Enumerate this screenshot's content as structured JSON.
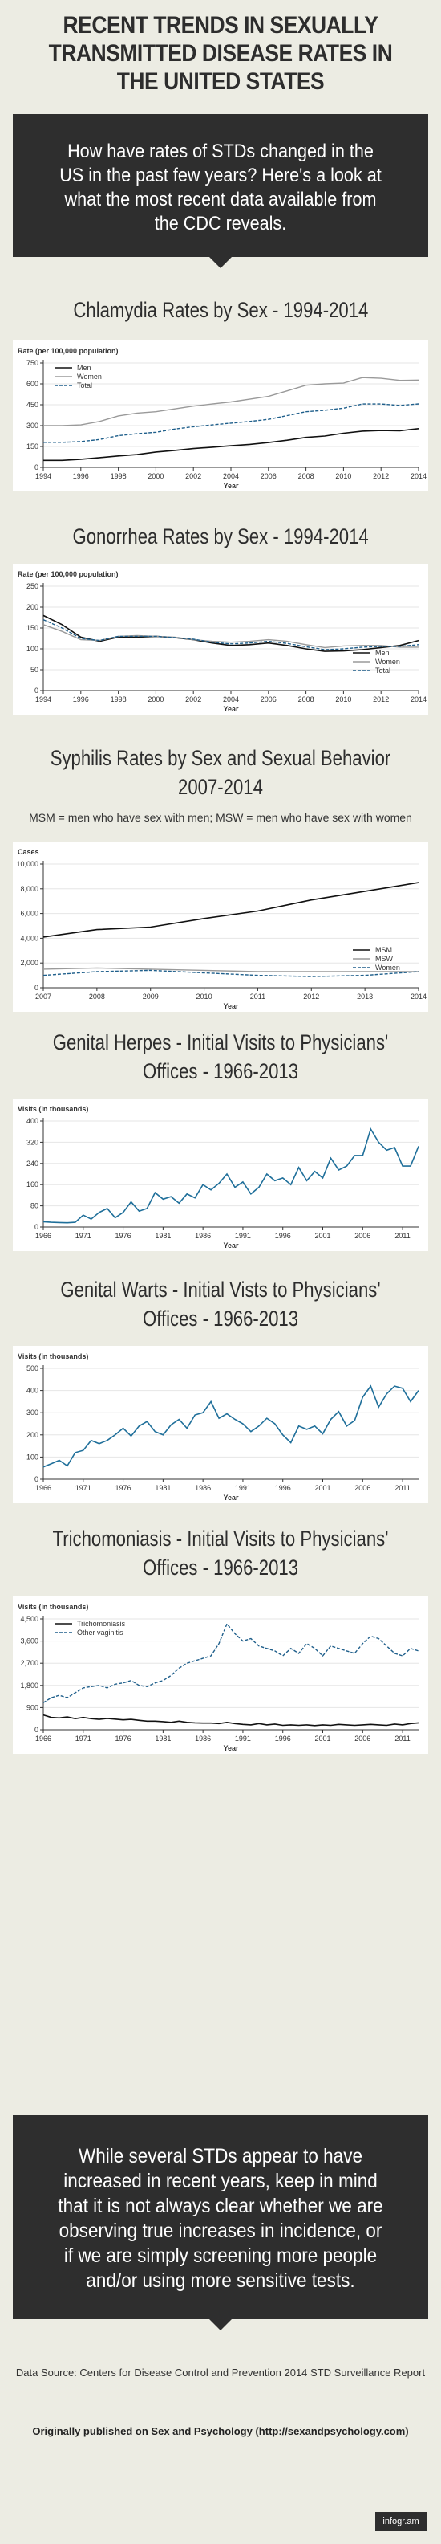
{
  "header": {
    "title": "RECENT TRENDS IN SEXUALLY TRANSMITTED DISEASE RATES IN THE UNITED STATES"
  },
  "intro": {
    "text": "How have rates of STDs changed in the US in the past few years? Here's a look at what the most recent data available from the CDC reveals."
  },
  "sections": [
    {
      "title": "Chlamydia Rates by Sex - 1994-2014",
      "note": ""
    },
    {
      "title": "Gonorrhea Rates by Sex - 1994-2014",
      "note": ""
    },
    {
      "title": "Syphilis Rates by Sex and Sexual Behavior 2007-2014",
      "note": "MSM = men who have sex with men; MSW = men who have sex with women"
    },
    {
      "title": "Genital Herpes - Initial Visits to Physicians' Offices - 1966-2013",
      "note": ""
    },
    {
      "title": "Genital Warts - Initial Vists to Physicians' Offices - 1966-2013",
      "note": ""
    },
    {
      "title": "Trichomoniasis - Initial Visits to Physicians' Offices - 1966-2013",
      "note": ""
    }
  ],
  "outro": {
    "text": "While several STDs appear to have increased in recent years, keep in mind that it is not always clear whether we are observing true increases in incidence, or if we are simply screening more people and/or using more sensitive tests."
  },
  "footer": {
    "source": "Data Source: Centers for Disease Control and Prevention 2014 STD Surveillance Report",
    "published": "Originally published on Sex and Psychology (http://sexandpsychology.com)",
    "badge": "infogr.am"
  },
  "colors": {
    "background": "#ecece3",
    "dark_box": "#2e2e2e",
    "series_black": "#111111",
    "series_gray": "#9a9a9a",
    "series_blue": "#1f5f8b",
    "series_teal": "#1f6f9a"
  },
  "chart_data": [
    {
      "type": "line",
      "title": "Chlamydia Rates by Sex - 1994-2014",
      "ylabel": "Rate (per 100,000 population)",
      "xlabel": "Year",
      "ylim": [
        0,
        750
      ],
      "yticks": [
        0,
        150,
        300,
        450,
        600,
        750
      ],
      "xlim": [
        1994,
        2014
      ],
      "xticks": [
        "1994",
        "1996",
        "1998",
        "2000",
        "2002",
        "2004",
        "2006",
        "2008",
        "2010",
        "2012",
        "2014"
      ],
      "legend": "top-left",
      "x": [
        1994,
        1995,
        1996,
        1997,
        1998,
        1999,
        2000,
        2001,
        2002,
        2003,
        2004,
        2005,
        2006,
        2007,
        2008,
        2009,
        2010,
        2011,
        2012,
        2013,
        2014
      ],
      "series": [
        {
          "name": "Men",
          "style": "solid-black",
          "values": [
            50,
            50,
            58,
            70,
            82,
            92,
            110,
            122,
            135,
            145,
            155,
            165,
            178,
            195,
            215,
            225,
            245,
            260,
            265,
            263,
            278
          ]
        },
        {
          "name": "Women",
          "style": "solid-gray",
          "values": [
            300,
            300,
            305,
            330,
            370,
            390,
            400,
            420,
            440,
            455,
            470,
            490,
            510,
            550,
            590,
            600,
            605,
            645,
            640,
            625,
            627
          ]
        },
        {
          "name": "Total",
          "style": "dashed-blue",
          "values": [
            180,
            180,
            185,
            200,
            228,
            242,
            252,
            275,
            292,
            305,
            318,
            330,
            345,
            372,
            400,
            410,
            425,
            455,
            455,
            445,
            456
          ]
        }
      ]
    },
    {
      "type": "line",
      "title": "Gonorrhea Rates by Sex - 1994-2014",
      "ylabel": "Rate (per 100,000 population)",
      "xlabel": "Year",
      "ylim": [
        0,
        250
      ],
      "yticks": [
        0,
        50,
        100,
        150,
        200,
        250
      ],
      "xlim": [
        1994,
        2014
      ],
      "xticks": [
        "1994",
        "1996",
        "1998",
        "2000",
        "2002",
        "2004",
        "2006",
        "2008",
        "2010",
        "2012",
        "2014"
      ],
      "legend": "right",
      "x": [
        1994,
        1995,
        1996,
        1997,
        1998,
        1999,
        2000,
        2001,
        2002,
        2003,
        2004,
        2005,
        2006,
        2007,
        2008,
        2009,
        2010,
        2011,
        2012,
        2013,
        2014
      ],
      "series": [
        {
          "name": "Men",
          "style": "solid-black",
          "values": [
            180,
            158,
            128,
            118,
            128,
            128,
            130,
            127,
            122,
            114,
            108,
            110,
            114,
            108,
            100,
            94,
            95,
            98,
            103,
            108,
            120
          ]
        },
        {
          "name": "Women",
          "style": "solid-gray",
          "values": [
            158,
            142,
            122,
            120,
            130,
            132,
            130,
            128,
            122,
            118,
            116,
            118,
            122,
            118,
            110,
            103,
            107,
            108,
            108,
            104,
            104
          ]
        },
        {
          "name": "Total",
          "style": "dashed-blue",
          "values": [
            170,
            150,
            125,
            120,
            130,
            130,
            130,
            127,
            123,
            116,
            112,
            114,
            118,
            113,
            105,
            98,
            100,
            104,
            106,
            106,
            110
          ]
        }
      ]
    },
    {
      "type": "line",
      "title": "Syphilis Rates by Sex and Sexual Behavior 2007-2014",
      "ylabel": "Cases",
      "xlabel": "Year",
      "ylim": [
        0,
        10000
      ],
      "yticks": [
        0,
        2000,
        4000,
        6000,
        8000,
        10000
      ],
      "ytick_labels": [
        "0",
        "2,000",
        "4,000",
        "6,000",
        "8,000",
        "10,000"
      ],
      "xlim": [
        2007,
        2014
      ],
      "xticks": [
        "2007",
        "2008",
        "2009",
        "2010",
        "2011",
        "2012",
        "2013",
        "2014"
      ],
      "legend": "right",
      "x": [
        2007,
        2008,
        2009,
        2010,
        2011,
        2012,
        2013,
        2014
      ],
      "series": [
        {
          "name": "MSM",
          "style": "solid-black",
          "values": [
            4100,
            4700,
            4900,
            5600,
            6200,
            7100,
            7800,
            8500
          ]
        },
        {
          "name": "MSW",
          "style": "solid-gray",
          "values": [
            1500,
            1600,
            1500,
            1400,
            1300,
            1300,
            1300,
            1300
          ]
        },
        {
          "name": "Women",
          "style": "dashed-blue",
          "values": [
            1000,
            1300,
            1400,
            1200,
            1000,
            900,
            1000,
            1300
          ]
        }
      ]
    },
    {
      "type": "line",
      "title": "Genital Herpes - Initial Visits to Physicians' Offices - 1966-2013",
      "ylabel": "Visits (in thousands)",
      "xlabel": "Year",
      "ylim": [
        0,
        400
      ],
      "yticks": [
        0,
        80,
        160,
        240,
        320,
        400
      ],
      "xlim": [
        1966,
        2013
      ],
      "xticks": [
        "1966",
        "1971",
        "1976",
        "1981",
        "1986",
        "1991",
        "1996",
        "2001",
        "2006",
        "2011"
      ],
      "x": [
        1966,
        1967,
        1968,
        1969,
        1970,
        1971,
        1972,
        1973,
        1974,
        1975,
        1976,
        1977,
        1978,
        1979,
        1980,
        1981,
        1982,
        1983,
        1984,
        1985,
        1986,
        1987,
        1988,
        1989,
        1990,
        1991,
        1992,
        1993,
        1994,
        1995,
        1996,
        1997,
        1998,
        1999,
        2000,
        2001,
        2002,
        2003,
        2004,
        2005,
        2006,
        2007,
        2008,
        2009,
        2010,
        2011,
        2012,
        2013
      ],
      "series": [
        {
          "name": "",
          "style": "solid-teal",
          "values": [
            20,
            18,
            17,
            16,
            18,
            45,
            30,
            55,
            70,
            35,
            55,
            95,
            60,
            70,
            130,
            105,
            115,
            90,
            125,
            110,
            160,
            140,
            165,
            200,
            150,
            170,
            125,
            150,
            200,
            175,
            185,
            160,
            225,
            175,
            210,
            185,
            260,
            215,
            230,
            270,
            270,
            370,
            320,
            290,
            300,
            230,
            230,
            305
          ]
        }
      ]
    },
    {
      "type": "line",
      "title": "Genital Warts - Initial Vists to Physicians' Offices - 1966-2013",
      "ylabel": "Visits (in thousands)",
      "xlabel": "Year",
      "ylim": [
        0,
        500
      ],
      "yticks": [
        0,
        100,
        200,
        300,
        400,
        500
      ],
      "xlim": [
        1966,
        2013
      ],
      "xticks": [
        "1966",
        "1971",
        "1976",
        "1981",
        "1986",
        "1991",
        "1996",
        "2001",
        "2006",
        "2011"
      ],
      "x": [
        1966,
        1967,
        1968,
        1969,
        1970,
        1971,
        1972,
        1973,
        1974,
        1975,
        1976,
        1977,
        1978,
        1979,
        1980,
        1981,
        1982,
        1983,
        1984,
        1985,
        1986,
        1987,
        1988,
        1989,
        1990,
        1991,
        1992,
        1993,
        1994,
        1995,
        1996,
        1997,
        1998,
        1999,
        2000,
        2001,
        2002,
        2003,
        2004,
        2005,
        2006,
        2007,
        2008,
        2009,
        2010,
        2011,
        2012,
        2013
      ],
      "series": [
        {
          "name": "",
          "style": "solid-teal",
          "values": [
            55,
            70,
            85,
            60,
            120,
            130,
            175,
            160,
            175,
            200,
            230,
            195,
            240,
            260,
            215,
            200,
            245,
            270,
            230,
            290,
            300,
            350,
            275,
            295,
            270,
            250,
            215,
            240,
            275,
            250,
            200,
            165,
            240,
            225,
            240,
            205,
            270,
            305,
            240,
            265,
            370,
            420,
            325,
            385,
            420,
            410,
            350,
            400
          ]
        }
      ]
    },
    {
      "type": "line",
      "title": "Trichomoniasis - Initial Visits to Physicians' Offices - 1966-2013",
      "ylabel": "Visits (in thousands)",
      "xlabel": "Year",
      "ylim": [
        0,
        4500
      ],
      "yticks": [
        0,
        900,
        1800,
        2700,
        3600,
        4500
      ],
      "ytick_labels": [
        "0",
        "900",
        "1,800",
        "2,700",
        "3,600",
        "4,500"
      ],
      "xlim": [
        1966,
        2013
      ],
      "xticks": [
        "1966",
        "1971",
        "1976",
        "1981",
        "1986",
        "1991",
        "1996",
        "2001",
        "2006",
        "2011"
      ],
      "legend": "top-left",
      "x": [
        1966,
        1967,
        1968,
        1969,
        1970,
        1971,
        1972,
        1973,
        1974,
        1975,
        1976,
        1977,
        1978,
        1979,
        1980,
        1981,
        1982,
        1983,
        1984,
        1985,
        1986,
        1987,
        1988,
        1989,
        1990,
        1991,
        1992,
        1993,
        1994,
        1995,
        1996,
        1997,
        1998,
        1999,
        2000,
        2001,
        2002,
        2003,
        2004,
        2005,
        2006,
        2007,
        2008,
        2009,
        2010,
        2011,
        2012,
        2013
      ],
      "series": [
        {
          "name": "Trichomoniasis",
          "style": "solid-black",
          "values": [
            600,
            500,
            480,
            520,
            450,
            500,
            450,
            420,
            460,
            430,
            400,
            420,
            380,
            350,
            350,
            330,
            300,
            350,
            300,
            280,
            270,
            270,
            250,
            300,
            250,
            220,
            200,
            250,
            200,
            230,
            180,
            200,
            180,
            200,
            170,
            200,
            180,
            220,
            200,
            180,
            200,
            220,
            200,
            180,
            230,
            200,
            250,
            280
          ]
        },
        {
          "name": "Other vaginitis",
          "style": "dashed-blue",
          "values": [
            1100,
            1300,
            1400,
            1300,
            1500,
            1700,
            1750,
            1800,
            1700,
            1850,
            1900,
            2000,
            1800,
            1750,
            1900,
            2000,
            2200,
            2500,
            2700,
            2800,
            2900,
            3000,
            3500,
            4300,
            3900,
            3600,
            3700,
            3400,
            3300,
            3200,
            3000,
            3300,
            3100,
            3500,
            3300,
            3000,
            3400,
            3300,
            3200,
            3100,
            3500,
            3800,
            3700,
            3400,
            3100,
            3000,
            3300,
            3200
          ]
        }
      ]
    }
  ]
}
